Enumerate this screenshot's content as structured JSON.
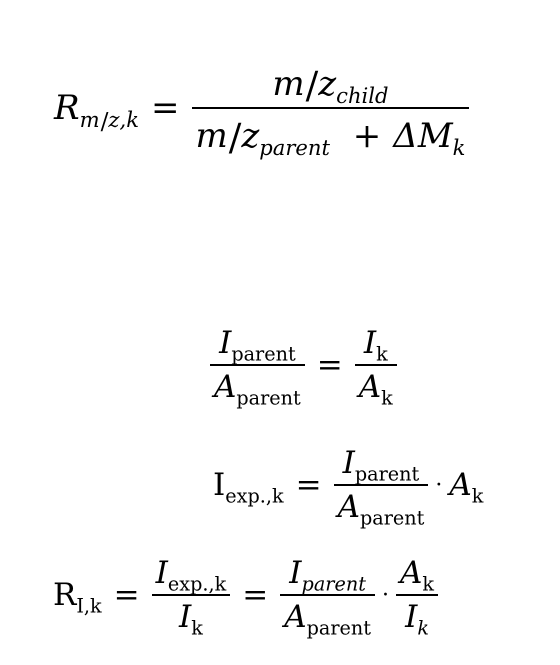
{
  "eq1": {
    "lhs_R": "R",
    "lhs_m": "m",
    "lhs_slash": "/",
    "lhs_z": "z",
    "lhs_k": ",k",
    "equals": "=",
    "num_m": "m",
    "num_slash": "/",
    "num_z": "z",
    "num_sub": "child",
    "den_m": "m",
    "den_slash": "/",
    "den_z": "z",
    "den_sub": "parent",
    "plus": "+",
    "delta": "ΔM",
    "delta_sub": "k"
  },
  "eq2": {
    "l_num_I": "I",
    "l_num_sub": "parent",
    "l_den_A": "A",
    "l_den_sub": "parent",
    "equals": "=",
    "r_num_I": "I",
    "r_num_sub": "k",
    "r_den_A": "A",
    "r_den_sub": "k"
  },
  "eq3": {
    "lhs_I": "I",
    "lhs_sub": "exp.,k",
    "equals": "=",
    "num_I": "I",
    "num_sub": "parent",
    "den_A": "A",
    "den_sub": "parent",
    "dot": "·",
    "rhs_A": "A",
    "rhs_sub": "k"
  },
  "eq4": {
    "lhs_R": "R",
    "lhs_sub": "I,k",
    "equals1": "=",
    "f1_num_I": "I",
    "f1_num_sub": "exp.,k",
    "f1_den_I": "I",
    "f1_den_sub": "k",
    "equals2": "=",
    "f2_num_I": "I",
    "f2_num_sub": "parent",
    "f2_den_A": "A",
    "f2_den_sub": "parent",
    "dot": "·",
    "f3_num_A": "A",
    "f3_num_sub": "k",
    "f3_den_I": "I",
    "f3_den_sub": "k"
  }
}
